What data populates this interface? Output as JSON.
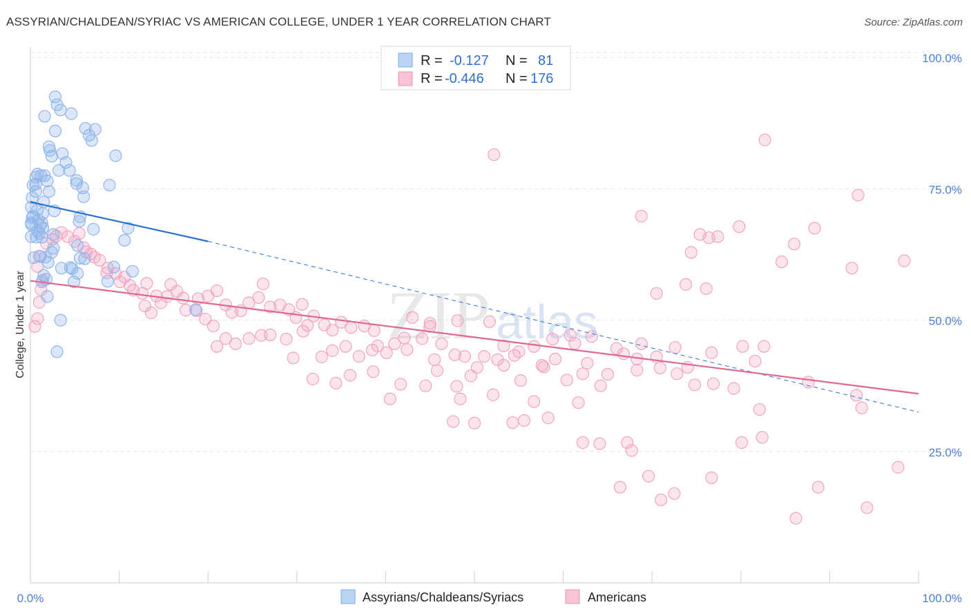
{
  "header": {
    "title": "ASSYRIAN/CHALDEAN/SYRIAC VS AMERICAN COLLEGE, UNDER 1 YEAR CORRELATION CHART",
    "source": "Source: ZipAtlas.com"
  },
  "watermark": {
    "zip": "ZIP",
    "atlas": "atlas"
  },
  "legend": {
    "rows": [
      {
        "r_label": "R =",
        "r_value": "-0.127",
        "n_label": "N =",
        "n_value": "81"
      },
      {
        "r_label": "R =",
        "r_value": "-0.446",
        "n_label": "N =",
        "n_value": "176"
      }
    ]
  },
  "bottom_legend": {
    "items": [
      "Assyrians/Chaldeans/Syriacs",
      "Americans"
    ]
  },
  "colors": {
    "blue": "#8fb5ea",
    "blue_line": "#2a6fd4",
    "pink": "#f2a3bf",
    "pink_line": "#e06690",
    "grid": "#e2e2e2",
    "tick_text": "#4a7fcf"
  },
  "chart_data": {
    "type": "scatter",
    "title": "ASSYRIAN/CHALDEAN/SYRIAC VS AMERICAN COLLEGE, UNDER 1 YEAR CORRELATION CHART",
    "xlabel": "",
    "ylabel": "College, Under 1 year",
    "xlim": [
      0,
      100
    ],
    "ylim": [
      0,
      102
    ],
    "x_tick_labels": [
      "0.0%",
      "100.0%"
    ],
    "y_tick_labels": [
      "100.0%",
      "75.0%",
      "50.0%",
      "25.0%"
    ],
    "y_ticks": [
      100,
      75,
      50,
      25
    ],
    "series": [
      {
        "name": "Assyrians/Chaldeans/Syriacs",
        "r": -0.127,
        "n": 81,
        "trend": {
          "x0": 0,
          "y0": 72.5,
          "x1": 20,
          "y1": 65.0,
          "dash_x1": 100,
          "dash_y1": 32.5
        },
        "points": [
          [
            2.8,
            92.5
          ],
          [
            3.0,
            91.0
          ],
          [
            3.4,
            90.0
          ],
          [
            4.6,
            89.3
          ],
          [
            1.6,
            88.8
          ],
          [
            6.2,
            86.5
          ],
          [
            2.8,
            86.0
          ],
          [
            7.3,
            86.3
          ],
          [
            6.6,
            85.2
          ],
          [
            6.9,
            84.2
          ],
          [
            2.1,
            83.0
          ],
          [
            2.2,
            82.3
          ],
          [
            3.6,
            81.7
          ],
          [
            9.6,
            81.3
          ],
          [
            2.4,
            81.2
          ],
          [
            4.0,
            80.0
          ],
          [
            4.4,
            78.5
          ],
          [
            3.2,
            78.5
          ],
          [
            0.8,
            77.8
          ],
          [
            1.2,
            77.5
          ],
          [
            1.6,
            77.5
          ],
          [
            0.6,
            77.2
          ],
          [
            5.2,
            76.6
          ],
          [
            1.9,
            76.5
          ],
          [
            5.2,
            76.0
          ],
          [
            0.6,
            75.9
          ],
          [
            0.3,
            75.7
          ],
          [
            8.9,
            75.7
          ],
          [
            5.9,
            75.2
          ],
          [
            0.6,
            74.5
          ],
          [
            2.1,
            74.5
          ],
          [
            6.0,
            73.5
          ],
          [
            0.2,
            73.3
          ],
          [
            1.5,
            72.5
          ],
          [
            0.1,
            71.5
          ],
          [
            0.8,
            71.0
          ],
          [
            2.7,
            70.8
          ],
          [
            1.4,
            70.3
          ],
          [
            0.3,
            69.8
          ],
          [
            5.6,
            69.7
          ],
          [
            0.2,
            69.5
          ],
          [
            0.9,
            69.1
          ],
          [
            5.5,
            68.8
          ],
          [
            0.1,
            68.5
          ],
          [
            1.3,
            68.5
          ],
          [
            0.1,
            68.2
          ],
          [
            1.1,
            68.0
          ],
          [
            1.4,
            67.6
          ],
          [
            11.0,
            67.5
          ],
          [
            7.1,
            67.3
          ],
          [
            0.8,
            67.0
          ],
          [
            1.0,
            66.5
          ],
          [
            2.6,
            66.3
          ],
          [
            0.1,
            65.9
          ],
          [
            0.7,
            65.8
          ],
          [
            1.3,
            65.8
          ],
          [
            10.6,
            65.2
          ],
          [
            2.6,
            63.7
          ],
          [
            5.3,
            64.2
          ],
          [
            2.4,
            62.9
          ],
          [
            1.1,
            62.1
          ],
          [
            1.7,
            62.0
          ],
          [
            0.4,
            61.9
          ],
          [
            5.6,
            61.8
          ],
          [
            6.1,
            61.7
          ],
          [
            2.0,
            61.0
          ],
          [
            9.4,
            60.1
          ],
          [
            4.5,
            60.0
          ],
          [
            3.5,
            59.9
          ],
          [
            11.5,
            59.3
          ],
          [
            5.3,
            58.9
          ],
          [
            1.5,
            58.5
          ],
          [
            1.8,
            57.8
          ],
          [
            1.3,
            57.3
          ],
          [
            4.9,
            57.3
          ],
          [
            8.7,
            57.4
          ],
          [
            1.9,
            54.5
          ],
          [
            18.6,
            52.0
          ],
          [
            3.4,
            50.0
          ],
          [
            3.0,
            44.0
          ],
          [
            4.7,
            59.8
          ]
        ]
      },
      {
        "name": "Americans",
        "r": -0.446,
        "n": 176,
        "trend": {
          "x0": 0,
          "y0": 57.5,
          "x1": 100,
          "y1": 36.0
        },
        "points": [
          [
            52.2,
            81.5
          ],
          [
            82.7,
            84.3
          ],
          [
            93.2,
            73.8
          ],
          [
            68.8,
            69.8
          ],
          [
            79.8,
            67.8
          ],
          [
            98.4,
            61.3
          ],
          [
            88.3,
            67.5
          ],
          [
            75.4,
            66.3
          ],
          [
            76.4,
            65.7
          ],
          [
            77.4,
            65.9
          ],
          [
            86.0,
            64.5
          ],
          [
            74.4,
            62.9
          ],
          [
            84.6,
            61.1
          ],
          [
            92.5,
            59.9
          ],
          [
            76.1,
            56.0
          ],
          [
            73.8,
            56.8
          ],
          [
            70.5,
            55.1
          ],
          [
            94.2,
            14.3
          ],
          [
            86.2,
            12.3
          ],
          [
            71.0,
            15.8
          ],
          [
            72.5,
            17.0
          ],
          [
            66.4,
            18.2
          ],
          [
            76.7,
            20.0
          ],
          [
            88.7,
            18.2
          ],
          [
            97.7,
            22.0
          ],
          [
            80.1,
            26.7
          ],
          [
            82.4,
            27.7
          ],
          [
            64.1,
            26.5
          ],
          [
            67.2,
            26.7
          ],
          [
            67.7,
            25.2
          ],
          [
            62.2,
            26.7
          ],
          [
            54.3,
            30.5
          ],
          [
            55.6,
            30.9
          ],
          [
            58.3,
            31.4
          ],
          [
            69.6,
            20.3
          ],
          [
            61.7,
            34.3
          ],
          [
            56.7,
            34.5
          ],
          [
            48.4,
            35.0
          ],
          [
            50.0,
            30.4
          ],
          [
            47.6,
            30.7
          ],
          [
            52.1,
            35.8
          ],
          [
            48.0,
            37.4
          ],
          [
            44.5,
            37.5
          ],
          [
            40.5,
            35.0
          ],
          [
            41.7,
            37.8
          ],
          [
            34.4,
            38.0
          ],
          [
            36.0,
            39.5
          ],
          [
            38.6,
            40.2
          ],
          [
            31.8,
            38.8
          ],
          [
            45.8,
            40.4
          ],
          [
            50.3,
            41.0
          ],
          [
            47.8,
            43.4
          ],
          [
            52.6,
            42.5
          ],
          [
            54.5,
            43.3
          ],
          [
            57.8,
            41.1
          ],
          [
            60.4,
            38.6
          ],
          [
            62.2,
            39.8
          ],
          [
            65.0,
            39.7
          ],
          [
            68.3,
            40.5
          ],
          [
            70.5,
            43.0
          ],
          [
            72.8,
            39.8
          ],
          [
            74.0,
            41.0
          ],
          [
            79.2,
            37.0
          ],
          [
            82.1,
            33.0
          ],
          [
            87.6,
            38.2
          ],
          [
            93.0,
            35.7
          ],
          [
            93.6,
            33.3
          ],
          [
            76.7,
            43.8
          ],
          [
            80.2,
            45.0
          ],
          [
            81.6,
            42.2
          ],
          [
            82.6,
            45.0
          ],
          [
            68.8,
            45.5
          ],
          [
            66.8,
            43.6
          ],
          [
            63.2,
            46.9
          ],
          [
            61.3,
            45.6
          ],
          [
            58.8,
            46.4
          ],
          [
            56.7,
            45.0
          ],
          [
            55.0,
            44.0
          ],
          [
            53.3,
            45.1
          ],
          [
            51.7,
            49.7
          ],
          [
            48.1,
            49.9
          ],
          [
            45.0,
            48.8
          ],
          [
            42.4,
            44.4
          ],
          [
            44.1,
            46.5
          ],
          [
            45.0,
            49.4
          ],
          [
            38.7,
            48.0
          ],
          [
            39.1,
            45.1
          ],
          [
            37.0,
            43.1
          ],
          [
            35.5,
            45.0
          ],
          [
            34.0,
            44.2
          ],
          [
            32.8,
            43.0
          ],
          [
            29.6,
            42.8
          ],
          [
            28.8,
            46.4
          ],
          [
            30.7,
            47.9
          ],
          [
            31.2,
            49.0
          ],
          [
            27.0,
            47.2
          ],
          [
            26.0,
            47.1
          ],
          [
            24.6,
            46.5
          ],
          [
            23.1,
            45.5
          ],
          [
            22.0,
            46.5
          ],
          [
            21.0,
            45.0
          ],
          [
            20.6,
            48.9
          ],
          [
            19.7,
            50.2
          ],
          [
            18.7,
            51.8
          ],
          [
            17.2,
            54.2
          ],
          [
            15.4,
            54.5
          ],
          [
            14.7,
            53.3
          ],
          [
            13.6,
            51.4
          ],
          [
            12.9,
            52.7
          ],
          [
            12.6,
            55.1
          ],
          [
            11.6,
            55.7
          ],
          [
            10.6,
            58.2
          ],
          [
            9.6,
            58.9
          ],
          [
            8.7,
            59.9
          ],
          [
            7.8,
            61.4
          ],
          [
            6.8,
            62.6
          ],
          [
            6.0,
            63.8
          ],
          [
            5.0,
            65.0
          ],
          [
            4.2,
            65.9
          ],
          [
            3.5,
            66.7
          ],
          [
            2.9,
            66.0
          ],
          [
            2.5,
            65.4
          ],
          [
            1.8,
            64.6
          ],
          [
            1.0,
            62.2
          ],
          [
            0.8,
            60.2
          ],
          [
            1.4,
            57.6
          ],
          [
            1.2,
            55.8
          ],
          [
            1.0,
            53.4
          ],
          [
            0.8,
            50.3
          ],
          [
            0.5,
            48.8
          ],
          [
            5.5,
            66.5
          ],
          [
            6.3,
            63.0
          ],
          [
            7.2,
            62.0
          ],
          [
            8.6,
            59.0
          ],
          [
            10.1,
            57.3
          ],
          [
            11.2,
            56.6
          ],
          [
            13.1,
            57.0
          ],
          [
            14.2,
            54.6
          ],
          [
            15.8,
            56.8
          ],
          [
            16.5,
            55.5
          ],
          [
            17.5,
            51.9
          ],
          [
            18.9,
            54.1
          ],
          [
            20.0,
            54.6
          ],
          [
            21.0,
            55.6
          ],
          [
            22.0,
            52.9
          ],
          [
            22.7,
            51.5
          ],
          [
            23.7,
            51.8
          ],
          [
            24.6,
            53.3
          ],
          [
            25.7,
            54.3
          ],
          [
            26.2,
            56.9
          ],
          [
            27.0,
            52.5
          ],
          [
            28.1,
            52.9
          ],
          [
            29.1,
            52.0
          ],
          [
            29.9,
            50.5
          ],
          [
            30.6,
            53.0
          ],
          [
            31.9,
            50.8
          ],
          [
            33.1,
            49.1
          ],
          [
            34.0,
            48.1
          ],
          [
            35.0,
            49.6
          ],
          [
            36.1,
            48.6
          ],
          [
            37.6,
            48.9
          ],
          [
            38.5,
            44.3
          ],
          [
            40.1,
            43.8
          ],
          [
            41.0,
            45.5
          ],
          [
            42.1,
            46.6
          ],
          [
            43.0,
            50.5
          ],
          [
            45.5,
            42.5
          ],
          [
            46.3,
            45.5
          ],
          [
            48.9,
            43.1
          ],
          [
            49.6,
            39.4
          ],
          [
            51.1,
            43.1
          ],
          [
            53.3,
            41.4
          ],
          [
            55.2,
            38.5
          ],
          [
            57.6,
            41.4
          ],
          [
            59.1,
            42.6
          ],
          [
            60.8,
            47.1
          ],
          [
            62.7,
            41.8
          ],
          [
            64.2,
            37.5
          ],
          [
            66.0,
            44.6
          ],
          [
            68.3,
            42.6
          ],
          [
            70.9,
            40.9
          ],
          [
            72.6,
            44.8
          ],
          [
            74.8,
            37.7
          ],
          [
            76.9,
            37.9
          ]
        ]
      }
    ]
  }
}
